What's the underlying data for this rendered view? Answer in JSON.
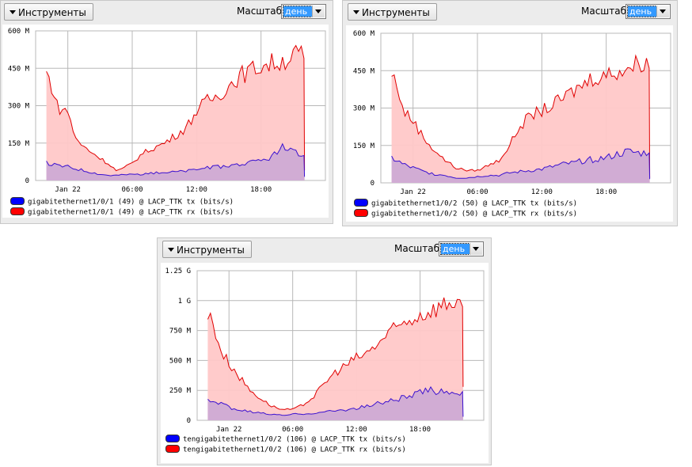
{
  "ui": {
    "tools_label": "Инструменты",
    "scale_label": "Масштаб:",
    "scale_value": "день"
  },
  "colors": {
    "tx_line": "#3a10d0",
    "tx_fill": "#c9a7d6",
    "rx_line": "#e00000",
    "rx_fill": "#ffc8c8",
    "grid": "#b8b8b8",
    "legend_tx": "#0000ff",
    "legend_rx": "#ff0000"
  },
  "chart_data": [
    {
      "type": "area",
      "id": "gi1-0-1",
      "x_unit": "hours",
      "xlim": [
        -3,
        24
      ],
      "ylim": [
        0,
        600
      ],
      "y_ticks": [
        0,
        150,
        300,
        450,
        600
      ],
      "y_tick_labels": [
        "0",
        "150 M",
        "300 M",
        "450 M",
        "600 M"
      ],
      "x_ticks": [
        0,
        6,
        12,
        18
      ],
      "x_tick_labels": [
        "Jan 22",
        "06:00",
        "12:00",
        "18:00"
      ],
      "grid": true,
      "legend_position": "bottom",
      "series": [
        {
          "name": "gigabitethernet1/0/1 (49) @ LACP_TTK tx (bits/s)",
          "role": "tx",
          "x": [
            -2.0,
            -1.0,
            0.0,
            1.0,
            2.0,
            3.0,
            4.0,
            5.0,
            6.0,
            7.0,
            8.0,
            9.0,
            10.0,
            11.0,
            12.0,
            13.0,
            14.0,
            15.0,
            16.0,
            17.0,
            18.0,
            19.0,
            20.0,
            21.0,
            22.0,
            22.05
          ],
          "values": [
            70,
            60,
            55,
            45,
            35,
            25,
            20,
            22,
            25,
            25,
            30,
            32,
            35,
            38,
            45,
            50,
            55,
            60,
            65,
            70,
            80,
            95,
            130,
            110,
            100,
            15
          ]
        },
        {
          "name": "gigabitethernet1/0/1 (49) @ LACP_TTK rx (bits/s)",
          "role": "rx",
          "x": [
            -2.0,
            -1.5,
            -1.0,
            -0.5,
            0.0,
            0.5,
            1.0,
            2.0,
            3.0,
            4.0,
            4.5,
            5.0,
            6.0,
            7.0,
            8.0,
            9.0,
            10.0,
            11.0,
            12.0,
            13.0,
            14.0,
            15.0,
            16.0,
            17.0,
            18.0,
            19.0,
            20.0,
            21.0,
            21.5,
            22.0,
            22.05
          ],
          "values": [
            430,
            380,
            300,
            280,
            280,
            200,
            150,
            120,
            90,
            60,
            40,
            45,
            70,
            110,
            130,
            150,
            180,
            210,
            280,
            320,
            340,
            380,
            420,
            440,
            460,
            470,
            480,
            500,
            510,
            490,
            40
          ]
        }
      ]
    },
    {
      "type": "area",
      "id": "gi1-0-2",
      "x_unit": "hours",
      "xlim": [
        -3,
        24
      ],
      "ylim": [
        0,
        600
      ],
      "y_ticks": [
        0,
        150,
        300,
        450,
        600
      ],
      "y_tick_labels": [
        "0",
        "150 M",
        "300 M",
        "450 M",
        "600 M"
      ],
      "x_ticks": [
        0,
        6,
        12,
        18
      ],
      "x_tick_labels": [
        "Jan 22",
        "06:00",
        "12:00",
        "18:00"
      ],
      "grid": true,
      "legend_position": "bottom",
      "series": [
        {
          "name": "gigabitethernet1/0/2 (50) @ LACP_TTK tx (bits/s)",
          "role": "tx",
          "x": [
            -2.0,
            -1.5,
            -1.0,
            0.0,
            1.0,
            2.0,
            3.0,
            4.0,
            5.0,
            6.0,
            7.0,
            8.0,
            9.0,
            10.0,
            11.0,
            12.0,
            13.0,
            14.0,
            15.0,
            16.0,
            17.0,
            18.0,
            19.0,
            20.0,
            21.0,
            22.0,
            22.05
          ],
          "values": [
            100,
            90,
            75,
            60,
            45,
            35,
            30,
            20,
            20,
            25,
            30,
            30,
            40,
            45,
            50,
            55,
            65,
            75,
            80,
            90,
            95,
            100,
            115,
            125,
            120,
            120,
            15
          ]
        },
        {
          "name": "gigabitethernet1/0/2 (50) @ LACP_TTK rx (bits/s)",
          "role": "rx",
          "x": [
            -2.0,
            -1.5,
            -1.0,
            -0.5,
            0.0,
            1.0,
            2.0,
            3.0,
            4.0,
            5.0,
            6.0,
            7.0,
            8.0,
            9.0,
            10.0,
            11.0,
            12.0,
            13.0,
            14.0,
            15.0,
            16.0,
            17.0,
            18.0,
            19.0,
            20.0,
            21.0,
            21.5,
            22.0,
            22.05
          ],
          "values": [
            430,
            400,
            300,
            270,
            250,
            180,
            130,
            90,
            60,
            50,
            50,
            70,
            90,
            150,
            230,
            270,
            290,
            310,
            340,
            370,
            400,
            430,
            430,
            450,
            460,
            480,
            490,
            460,
            20
          ]
        }
      ]
    },
    {
      "type": "area",
      "id": "te1-0-2",
      "x_unit": "hours",
      "xlim": [
        -3,
        24
      ],
      "ylim": [
        0,
        1250
      ],
      "y_ticks": [
        0,
        250,
        500,
        750,
        1000,
        1250
      ],
      "y_tick_labels": [
        "0",
        "250 M",
        "500 M",
        "750 M",
        "1 G",
        "1.25 G"
      ],
      "x_ticks": [
        0,
        6,
        12,
        18
      ],
      "x_tick_labels": [
        "Jan 22",
        "06:00",
        "12:00",
        "18:00"
      ],
      "grid": true,
      "legend_position": "bottom",
      "series": [
        {
          "name": "tengigabitethernet1/0/2 (106) @ LACP_TTK tx (bits/s)",
          "role": "tx",
          "x": [
            -2.0,
            -1.0,
            0.0,
            1.0,
            2.0,
            3.0,
            4.0,
            5.0,
            6.0,
            7.0,
            8.0,
            9.0,
            10.0,
            11.0,
            12.0,
            13.0,
            14.0,
            15.0,
            16.0,
            17.0,
            18.0,
            19.0,
            20.0,
            21.0,
            22.0,
            22.05
          ],
          "values": [
            170,
            140,
            110,
            85,
            70,
            60,
            50,
            40,
            50,
            55,
            60,
            70,
            80,
            90,
            100,
            120,
            140,
            160,
            180,
            200,
            230,
            250,
            250,
            240,
            240,
            30
          ]
        },
        {
          "name": "tengigabitethernet1/0/2 (106) @ LACP_TTK rx (bits/s)",
          "role": "rx",
          "x": [
            -2.0,
            -1.5,
            -1.0,
            -0.5,
            0.0,
            1.0,
            2.0,
            3.0,
            4.0,
            5.0,
            6.0,
            7.0,
            8.0,
            9.0,
            10.0,
            11.0,
            12.0,
            13.0,
            14.0,
            15.0,
            16.0,
            17.0,
            18.0,
            19.0,
            20.0,
            21.0,
            21.5,
            22.0,
            22.05
          ],
          "values": [
            870,
            820,
            650,
            540,
            480,
            360,
            250,
            180,
            120,
            90,
            90,
            130,
            200,
            310,
            400,
            460,
            520,
            560,
            640,
            720,
            780,
            840,
            880,
            920,
            960,
            990,
            1010,
            950,
            280
          ]
        }
      ]
    }
  ],
  "panels": [
    {
      "legend": [
        {
          "label": "gigabitethernet1/0/1 (49) @ LACP_TTK tx (bits/s)",
          "role": "tx"
        },
        {
          "label": "gigabitethernet1/0/1 (49) @ LACP_TTK rx (bits/s)",
          "role": "rx"
        }
      ]
    },
    {
      "legend": [
        {
          "label": "gigabitethernet1/0/2 (50) @ LACP_TTK tx (bits/s)",
          "role": "tx"
        },
        {
          "label": "gigabitethernet1/0/2 (50) @ LACP_TTK rx (bits/s)",
          "role": "rx"
        }
      ]
    },
    {
      "legend": [
        {
          "label": "tengigabitethernet1/0/2 (106) @ LACP_TTK tx (bits/s)",
          "role": "tx"
        },
        {
          "label": "tengigabitethernet1/0/2 (106) @ LACP_TTK rx (bits/s)",
          "role": "rx"
        }
      ]
    }
  ]
}
